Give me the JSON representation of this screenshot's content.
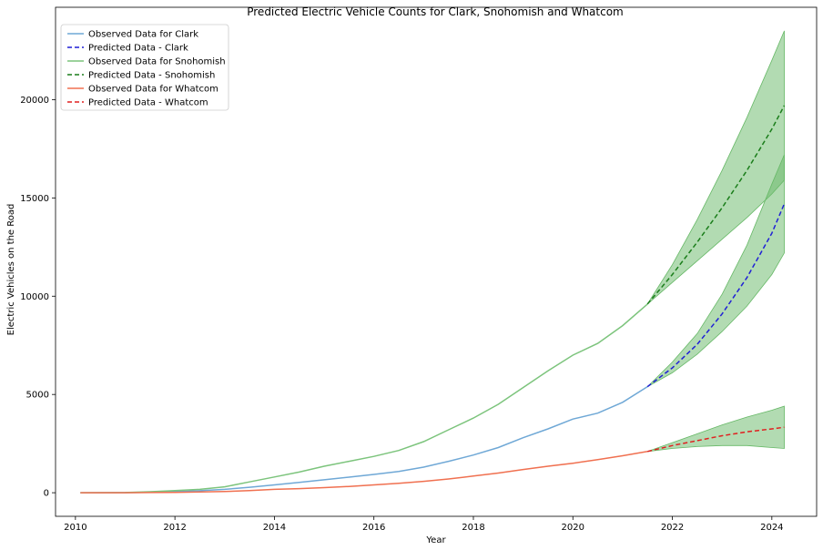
{
  "chart_data": {
    "type": "line",
    "title": "Predicted Electric Vehicle Counts for Clark, Snohomish and Whatcom",
    "xlabel": "Year",
    "ylabel": "Electric Vehicles on the Road",
    "xlim": [
      2009.6,
      2024.9
    ],
    "ylim": [
      -1200,
      24700
    ],
    "x_ticks": [
      2010,
      2012,
      2014,
      2016,
      2018,
      2020,
      2022,
      2024
    ],
    "y_ticks": [
      0,
      5000,
      10000,
      15000,
      20000
    ],
    "grid": false,
    "legend_position": "top-left",
    "series": [
      {
        "name": "Observed Data for Clark",
        "style": "solid",
        "color": "#6fa8d6",
        "x": [
          2010.1,
          2011.0,
          2011.5,
          2012.0,
          2012.5,
          2013.0,
          2013.5,
          2014.0,
          2014.5,
          2015.0,
          2015.5,
          2016.0,
          2016.5,
          2017.0,
          2017.5,
          2018.0,
          2018.5,
          2019.0,
          2019.5,
          2020.0,
          2020.5,
          2021.0,
          2021.5
        ],
        "y": [
          0,
          5,
          25,
          55,
          100,
          170,
          280,
          400,
          530,
          660,
          790,
          930,
          1080,
          1300,
          1600,
          1920,
          2300,
          2800,
          3250,
          3750,
          4050,
          4600,
          5400
        ]
      },
      {
        "name": "Predicted Data - Clark",
        "style": "dashed",
        "color": "#1f1fd6",
        "x": [
          2021.5,
          2022.0,
          2022.5,
          2023.0,
          2023.5,
          2024.0,
          2024.25
        ],
        "y": [
          5400,
          6350,
          7550,
          9100,
          10950,
          13200,
          14700
        ],
        "band_lower": [
          5400,
          6100,
          7050,
          8200,
          9500,
          11100,
          12200
        ],
        "band_upper": [
          5400,
          6650,
          8100,
          10100,
          12600,
          15700,
          17200
        ]
      },
      {
        "name": "Observed Data for Snohomish",
        "style": "solid",
        "color": "#7cc47c",
        "x": [
          2010.1,
          2011.0,
          2011.5,
          2012.0,
          2012.5,
          2013.0,
          2013.5,
          2014.0,
          2014.5,
          2015.0,
          2015.5,
          2016.0,
          2016.5,
          2017.0,
          2017.5,
          2018.0,
          2018.5,
          2019.0,
          2019.5,
          2020.0,
          2020.5,
          2021.0,
          2021.5
        ],
        "y": [
          0,
          10,
          50,
          110,
          170,
          300,
          550,
          800,
          1050,
          1350,
          1600,
          1850,
          2150,
          2600,
          3200,
          3800,
          4500,
          5350,
          6200,
          7000,
          7600,
          8500,
          9600
        ]
      },
      {
        "name": "Predicted Data - Snohomish",
        "style": "dashed",
        "color": "#1a7d1a",
        "x": [
          2021.5,
          2022.0,
          2022.5,
          2023.0,
          2023.5,
          2024.0,
          2024.25
        ],
        "y": [
          9600,
          11100,
          12750,
          14500,
          16400,
          18500,
          19700
        ],
        "band_lower": [
          9600,
          10700,
          11800,
          12900,
          14000,
          15200,
          15900
        ],
        "band_upper": [
          9600,
          11600,
          13900,
          16400,
          19100,
          22000,
          23500
        ]
      },
      {
        "name": "Observed Data for Whatcom",
        "style": "solid",
        "color": "#f07050",
        "x": [
          2010.1,
          2011.0,
          2011.5,
          2012.0,
          2012.5,
          2013.0,
          2013.5,
          2014.0,
          2014.5,
          2015.0,
          2015.5,
          2016.0,
          2016.5,
          2017.0,
          2017.5,
          2018.0,
          2018.5,
          2019.0,
          2019.5,
          2020.0,
          2020.5,
          2021.0,
          2021.5
        ],
        "y": [
          0,
          0,
          10,
          20,
          35,
          60,
          110,
          170,
          210,
          260,
          320,
          400,
          480,
          580,
          700,
          850,
          1000,
          1180,
          1350,
          1500,
          1680,
          1880,
          2100
        ]
      },
      {
        "name": "Predicted Data - Whatcom",
        "style": "dashed",
        "color": "#e02020",
        "x": [
          2021.5,
          2022.0,
          2022.5,
          2023.0,
          2023.5,
          2024.0,
          2024.25
        ],
        "y": [
          2100,
          2400,
          2650,
          2900,
          3100,
          3250,
          3330
        ],
        "band_lower": [
          2100,
          2250,
          2350,
          2400,
          2400,
          2300,
          2250
        ],
        "band_upper": [
          2100,
          2550,
          3000,
          3450,
          3850,
          4200,
          4400
        ]
      }
    ],
    "band_color": "#66b866"
  }
}
